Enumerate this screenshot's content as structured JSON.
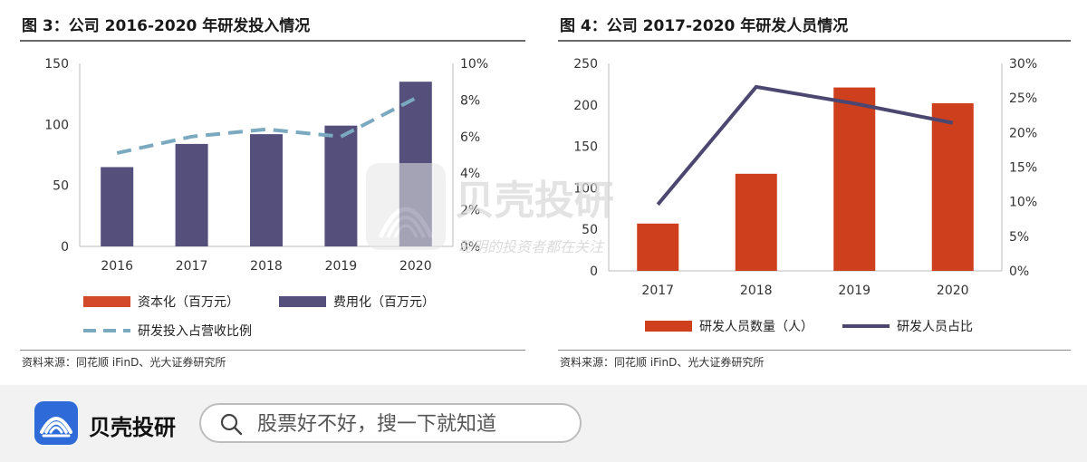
{
  "left_panel": {
    "title": "图 3：公司 2016-2020 年研发投入情况",
    "source": "资料来源：同花顺 iFinD、光大证券研究所"
  },
  "right_panel": {
    "title": "图 4：公司 2017-2020 年研发人员情况",
    "source": "资料来源：同花顺 iFinD、光大证券研究所"
  },
  "watermark": {
    "brand": "贝壳投研",
    "slogan": "聪明的投资者都在关注"
  },
  "bottom_bar": {
    "brand": "贝壳投研",
    "search_placeholder": "股票好不好，搜一下就知道"
  },
  "colors": {
    "expensed": "#544f7b",
    "capitalized": "#d24a2a",
    "ratio_line": "#7aa9c0",
    "staff_bars": "#cd3f1d",
    "staff_line": "#4b4770",
    "brand_blue": "#2f6bd8"
  },
  "chart_data": [
    {
      "type": "bar",
      "categories": [
        "2016",
        "2017",
        "2018",
        "2019",
        "2020"
      ],
      "series": [
        {
          "name": "资本化（百万元）",
          "axis": "left",
          "values": [
            0,
            1.5,
            0,
            0,
            0
          ]
        },
        {
          "name": "费用化（百万元）",
          "axis": "left",
          "values": [
            65,
            84,
            92,
            99,
            135
          ]
        },
        {
          "name": "研发投入占营收比例",
          "axis": "right",
          "kind": "dashed-line",
          "values": [
            5.1,
            6.0,
            6.4,
            6.0,
            8.1
          ]
        }
      ],
      "ylim": [
        0,
        150
      ],
      "yticks": [
        "0",
        "50",
        "100",
        "150"
      ],
      "y2lim": [
        0,
        10
      ],
      "y2ticks": [
        "0%",
        "2%",
        "4%",
        "6%",
        "8%",
        "10%"
      ],
      "legend": [
        "资本化（百万元）",
        "费用化（百万元）",
        "研发投入占营收比例"
      ],
      "legend_position": "bottom"
    },
    {
      "type": "bar",
      "categories": [
        "2017",
        "2018",
        "2019",
        "2020"
      ],
      "series": [
        {
          "name": "研发人员数量（人）",
          "axis": "left",
          "values": [
            57,
            117,
            221,
            202
          ]
        },
        {
          "name": "研发人员占比",
          "axis": "right",
          "kind": "line",
          "values": [
            9.6,
            26.6,
            24.2,
            21.4
          ]
        }
      ],
      "ylim": [
        0,
        250
      ],
      "yticks": [
        "0",
        "50",
        "100",
        "150",
        "200",
        "250"
      ],
      "y2lim": [
        0,
        30
      ],
      "y2ticks": [
        "0%",
        "5%",
        "10%",
        "15%",
        "20%",
        "25%",
        "30%"
      ],
      "legend": [
        "研发人员数量（人）",
        "研发人员占比"
      ],
      "legend_position": "bottom"
    }
  ]
}
